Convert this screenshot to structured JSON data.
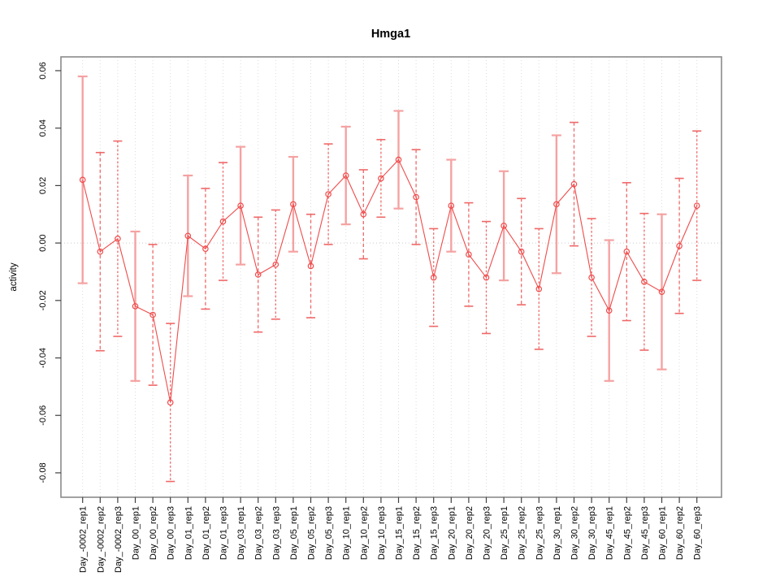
{
  "chart_data": {
    "type": "scatter",
    "title": "Hmga1",
    "ylabel": "activity",
    "xlabel": "",
    "legend": "none",
    "grid": "vertical dotted gridline at every category; dotted horizontal line at y=0",
    "categories": [
      "Day_-0002_rep1",
      "Day_-0002_rep2",
      "Day_-0002_rep3",
      "Day_00_rep1",
      "Day_00_rep2",
      "Day_00_rep3",
      "Day_01_rep1",
      "Day_01_rep2",
      "Day_01_rep3",
      "Day_03_rep1",
      "Day_03_rep2",
      "Day_03_rep3",
      "Day_05_rep1",
      "Day_05_rep2",
      "Day_05_rep3",
      "Day_10_rep1",
      "Day_10_rep2",
      "Day_10_rep3",
      "Day_15_rep1",
      "Day_15_rep2",
      "Day_15_rep3",
      "Day_20_rep1",
      "Day_20_rep2",
      "Day_20_rep3",
      "Day_25_rep1",
      "Day_25_rep2",
      "Day_25_rep3",
      "Day_30_rep1",
      "Day_30_rep2",
      "Day_30_rep3",
      "Day_45_rep1",
      "Day_45_rep2",
      "Day_45_rep3",
      "Day_60_rep1",
      "Day_60_rep2",
      "Day_60_rep3"
    ],
    "values": [
      0.022,
      -0.003,
      0.0015,
      -0.022,
      -0.025,
      -0.0555,
      0.0025,
      -0.002,
      0.0075,
      0.013,
      -0.011,
      -0.0075,
      0.0135,
      -0.008,
      0.017,
      0.0235,
      0.01,
      0.0225,
      0.029,
      0.016,
      -0.012,
      0.013,
      -0.004,
      -0.012,
      0.006,
      -0.003,
      -0.016,
      0.0135,
      0.0205,
      -0.012,
      -0.0235,
      -0.003,
      -0.0135,
      -0.017,
      -0.001,
      0.013
    ],
    "errors": [
      0.036,
      0.0345,
      0.034,
      0.026,
      0.0245,
      0.0275,
      0.021,
      0.021,
      0.0205,
      0.0205,
      0.02,
      0.019,
      0.0165,
      0.018,
      0.0175,
      0.017,
      0.0155,
      0.0135,
      0.017,
      0.0165,
      0.017,
      0.016,
      0.018,
      0.0195,
      0.019,
      0.0185,
      0.021,
      0.024,
      0.0215,
      0.0205,
      0.0245,
      0.024,
      0.0238,
      0.027,
      0.0235,
      0.026
    ],
    "yticks": [
      -0.08,
      -0.06,
      -0.04,
      -0.02,
      0.0,
      0.02,
      0.04,
      0.06
    ],
    "ylim": [
      -0.0885,
      0.0648
    ],
    "colors": {
      "point": "#ef4b4b",
      "line": "#ef4b4b",
      "bar_solid": "#f5a2a2",
      "bar_dashed": "#f06868",
      "grid": "#dcdcdc",
      "zero_line": "#c9c9c9",
      "box": "#8a8a8a",
      "tick": "#404040",
      "text": "#000000"
    }
  }
}
